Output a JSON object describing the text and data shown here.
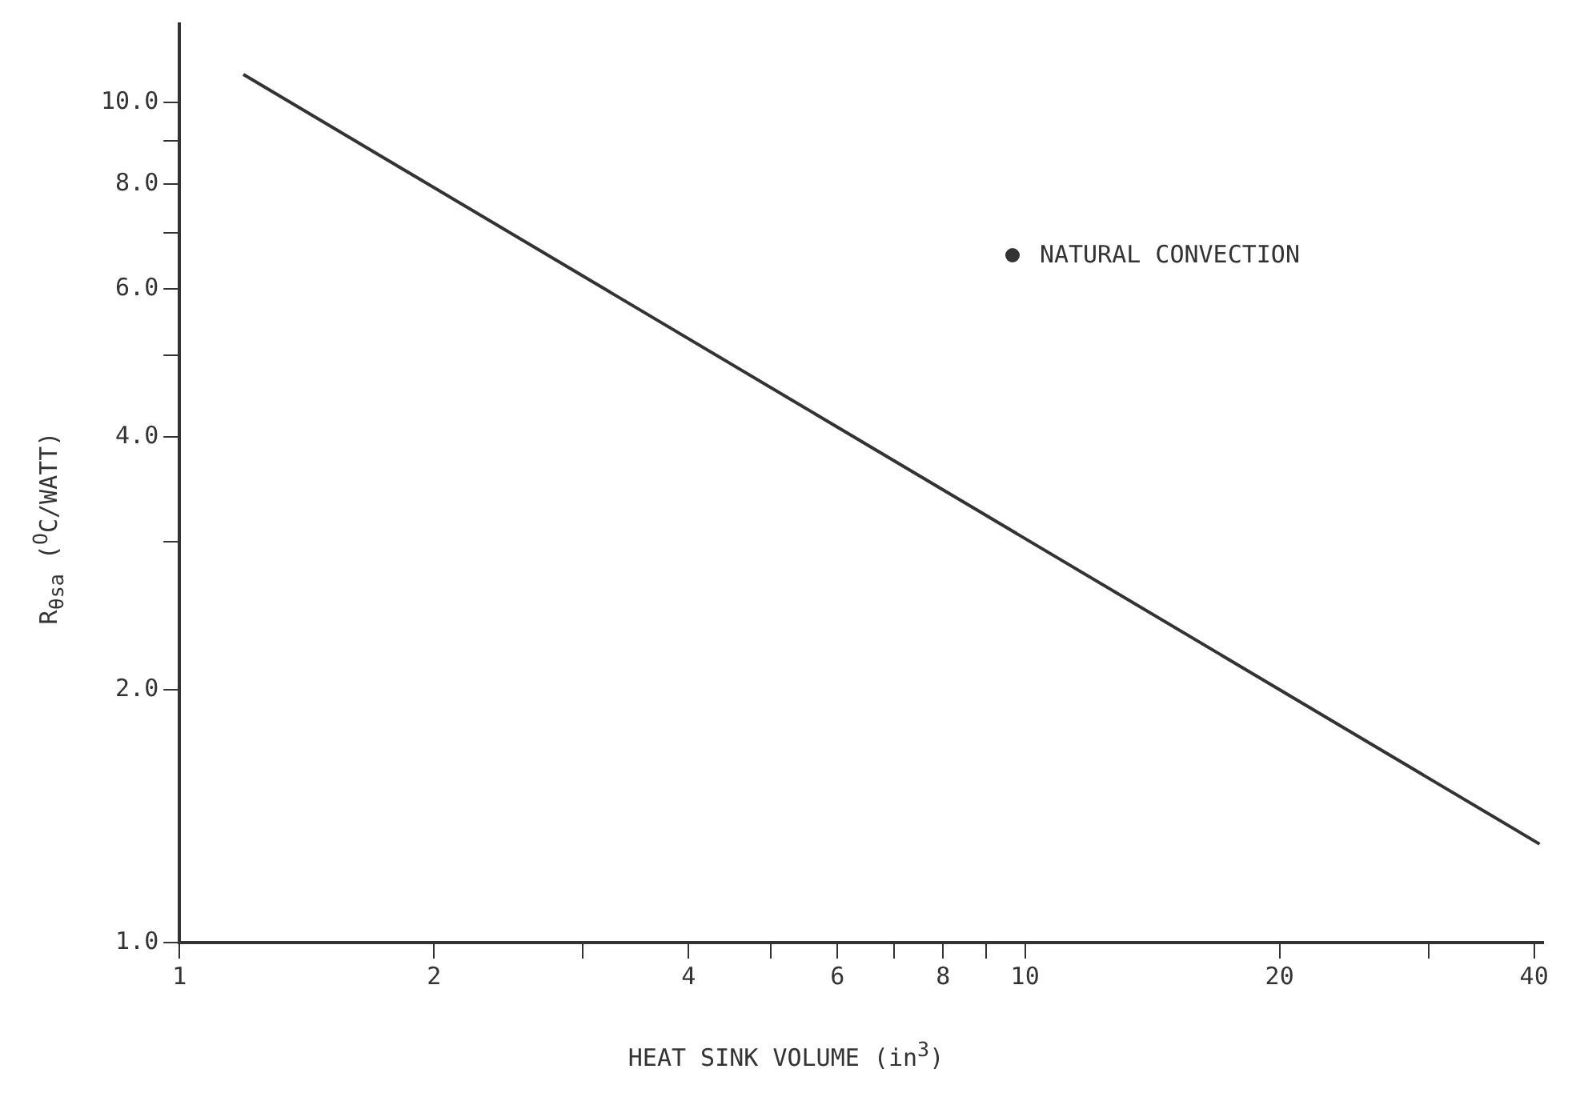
{
  "chart_data": {
    "type": "line",
    "xlabel": "HEAT SINK VOLUME (in$^{3}$)",
    "ylabel": "R$_{θsa}$ ($^{O}$C/WATT)",
    "log": "xy",
    "xlim": [
      1,
      41
    ],
    "ylim": [
      1,
      12.4
    ],
    "xticks": [
      1,
      2,
      {
        "value": 3,
        "label": null
      },
      4,
      {
        "value": 5,
        "label": null
      },
      6,
      {
        "value": 7,
        "label": null
      },
      8,
      {
        "value": 9,
        "label": null
      },
      10,
      20,
      {
        "value": 30,
        "label": null
      },
      40
    ],
    "yticks": [
      {
        "value": 1,
        "label": "1.0"
      },
      {
        "value": 2,
        "label": "2.0"
      },
      {
        "value": 3,
        "label": null
      },
      {
        "value": 4,
        "label": "4.0"
      },
      {
        "value": 5,
        "label": null
      },
      {
        "value": 6,
        "label": "6.0"
      },
      {
        "value": 7,
        "label": null
      },
      {
        "value": 8,
        "label": "8.0"
      },
      {
        "value": 9,
        "label": null
      },
      {
        "value": 10,
        "label": "10.0"
      }
    ],
    "grid": false,
    "legend": "top right",
    "marker": "none",
    "line_style": "solid",
    "series": [
      {
        "name": "NATURAL CONVECTION",
        "color": "#333333",
        "x": [
          1.19,
          40.6
        ],
        "values": [
          10.8,
          1.31
        ]
      }
    ]
  }
}
